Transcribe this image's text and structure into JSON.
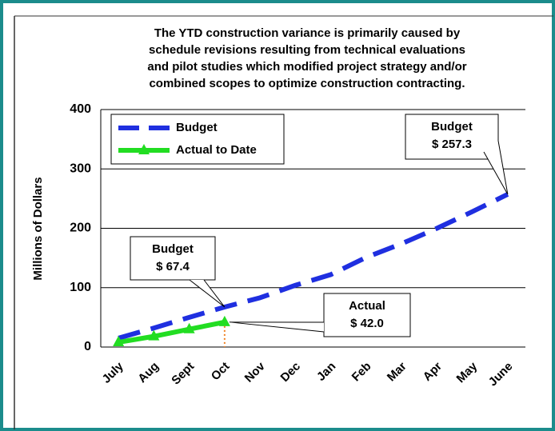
{
  "chart_data": {
    "type": "line",
    "title": [
      "The YTD construction variance is primarily caused by",
      "schedule revisions resulting from technical evaluations",
      "and pilot studies which modified project strategy and/or",
      "combined scopes to optimize construction contracting."
    ],
    "y_label": "Millions of Dollars",
    "categories": [
      "July",
      "Aug",
      "Sept",
      "Oct",
      "Nov",
      "Dec",
      "Jan",
      "Feb",
      "Mar",
      "Apr",
      "May",
      "June"
    ],
    "series": [
      {
        "name": "Budget",
        "color": "#1f2fe0",
        "values": [
          15,
          32,
          50,
          67.4,
          83,
          104,
          122,
          151,
          174,
          200,
          228,
          257.3
        ]
      },
      {
        "name": "Actual to Date",
        "color": "#22dd22",
        "values": [
          8,
          18,
          30,
          42.0,
          null,
          null,
          null,
          null,
          null,
          null,
          null,
          null
        ]
      }
    ],
    "ylim": [
      0,
      400
    ],
    "yticks": [
      0,
      100,
      200,
      300,
      400
    ],
    "grid": true,
    "legend": "top-left",
    "annotations": [
      {
        "lines": [
          "Budget",
          "$ 257.3"
        ],
        "series": 0,
        "index": 11
      },
      {
        "lines": [
          "Budget",
          "$ 67.4"
        ],
        "series": 0,
        "index": 3
      },
      {
        "lines": [
          "Actual",
          "$ 42.0"
        ],
        "series": 1,
        "index": 3
      }
    ]
  }
}
